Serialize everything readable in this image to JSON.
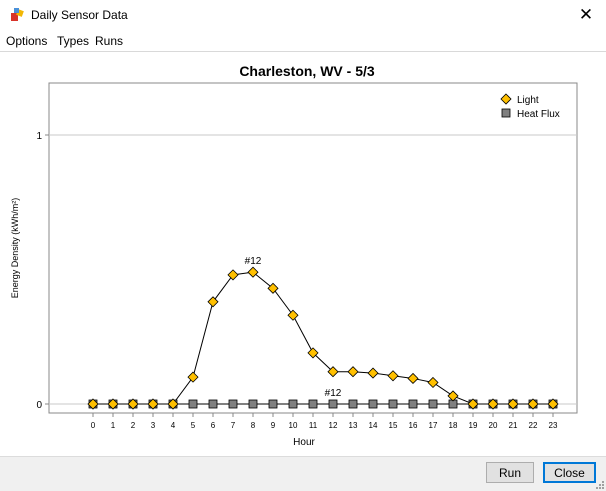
{
  "window": {
    "title": "Daily Sensor Data",
    "close_glyph": "✕"
  },
  "menu": [
    "Options",
    "Types",
    "Runs"
  ],
  "buttons": {
    "run": "Run",
    "close": "Close"
  },
  "colors": {
    "light": "#ffc000",
    "heat_flux": "#808080",
    "line": "#000000",
    "grid": "#c8c8c8"
  },
  "chart_data": {
    "type": "line",
    "title": "Charleston, WV - 5/3",
    "xlabel": "Hour",
    "ylabel": "Energy Density (kWh/m²)",
    "x": [
      0,
      1,
      2,
      3,
      4,
      5,
      6,
      7,
      8,
      9,
      10,
      11,
      12,
      13,
      14,
      15,
      16,
      17,
      18,
      19,
      20,
      21,
      22,
      23
    ],
    "x_tick_labels": [
      "0",
      "1",
      "2",
      "3",
      "4",
      "5",
      "6",
      "7",
      "8",
      "9",
      "10",
      "11",
      "12",
      "13",
      "14",
      "15",
      "16",
      "17",
      "18",
      "19",
      "20",
      "21",
      "22",
      "23"
    ],
    "y_tick_labels": [
      "0",
      "1"
    ],
    "ylim": [
      0,
      1.0
    ],
    "grid": true,
    "legend_position": "top-right",
    "series": [
      {
        "name": "Light",
        "marker": "diamond",
        "values": [
          0,
          0,
          0,
          0,
          0,
          0.1,
          0.38,
          0.48,
          0.49,
          0.43,
          0.33,
          0.19,
          0.12,
          0.12,
          0.115,
          0.105,
          0.095,
          0.08,
          0.03,
          0,
          0,
          0,
          0,
          0
        ]
      },
      {
        "name": "Heat Flux",
        "marker": "square",
        "values": [
          0,
          0,
          0,
          0,
          0,
          0,
          0,
          0,
          0,
          0,
          0,
          0,
          0,
          0,
          0,
          0,
          0,
          0,
          0,
          0,
          0,
          0,
          0,
          0
        ]
      }
    ],
    "annotations": [
      {
        "text": "#12",
        "series": "Light",
        "x": 8
      },
      {
        "text": "#12",
        "series": "Heat Flux",
        "x": 12
      }
    ]
  }
}
